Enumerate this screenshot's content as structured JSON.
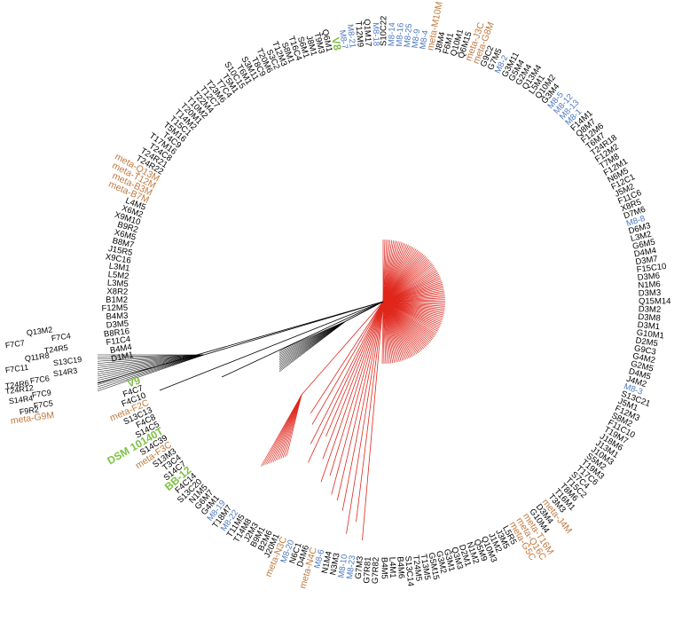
{
  "ring_labels": [
    "D1M1",
    "B4M4",
    "F11C4",
    "B8R16",
    "D3M5",
    "B4M3",
    "F12M5",
    "B1M2",
    "X8R2",
    "L3M5",
    "L5M2",
    "L3M1",
    "X9C16",
    "J15R5",
    "B8M7",
    "X6M5",
    "B9R2",
    "X9M10",
    "X6M2",
    "L4M5",
    {
      "text": "meta-B7M",
      "color": "#c17a3f"
    },
    {
      "text": "meta-B3M",
      "color": "#c17a3f"
    },
    {
      "text": "meta-T12M",
      "color": "#c17a3f"
    },
    {
      "text": "meta-Q13M",
      "color": "#c17a3f"
    },
    "T24R22",
    "T24R21",
    "T24C8",
    "T17M16",
    "T4C9",
    "T5M16",
    "T15C1",
    "T14M2",
    "T20M1",
    "T10M2",
    "T22M4",
    "T12C7",
    "T23M6",
    "T7C4",
    "T5M1",
    "S10C15",
    "T6M1",
    "S3M11",
    "T8C9",
    "T20M6",
    "S3C2",
    "T12M3",
    "S8M1",
    "T16C4",
    "S6M1",
    "J8M1",
    "T9M3",
    "Q6M1",
    {
      "text": "V8",
      "color": "#7cc142"
    },
    {
      "text": "M8-7",
      "color": "#4a78c0"
    },
    {
      "text": "M8-21",
      "color": "#4a78c0"
    },
    "T12M9",
    "Q1M17",
    {
      "text": "M8-18",
      "color": "#4a78c0"
    },
    "S10C22",
    {
      "text": "M8-14",
      "color": "#4a78c0"
    },
    {
      "text": "M8-16",
      "color": "#4a78c0"
    },
    {
      "text": "M8-25",
      "color": "#4a78c0"
    },
    {
      "text": "M8-9",
      "color": "#4a78c0"
    },
    {
      "text": "M8-4",
      "color": "#4a78c0"
    },
    {
      "text": "meta-M10M",
      "color": "#c17a3f"
    },
    "J8M4",
    "F6M1",
    "Q10M1",
    "Q6M15",
    {
      "text": "meta-J3C",
      "color": "#c17a3f"
    },
    {
      "text": "meta-G8M",
      "color": "#c17a3f"
    },
    "G9C2",
    "G7M5",
    {
      "text": "M8-2",
      "color": "#4a78c0"
    },
    "G3M11",
    "G5M4",
    "G2M4",
    "Q13M4",
    "L5M1",
    "Q10M2",
    "G3M4",
    {
      "text": "M8-5",
      "color": "#4a78c0"
    },
    {
      "text": "M8-12",
      "color": "#4a78c0"
    },
    {
      "text": "M8-13",
      "color": "#4a78c0"
    },
    {
      "text": "M8-1",
      "color": "#4a78c0"
    },
    "F14M1",
    "Q8M7",
    "F12M6",
    "T6M7",
    "T24R18",
    "F12M2",
    "T7M8",
    "F12M1",
    "N6M5",
    "F12C1",
    "J5M2",
    "F11C6",
    "X8R5",
    "D7M6",
    {
      "text": "M8-8",
      "color": "#4a78c0"
    },
    "D6M3",
    "L3M2",
    "G6M5",
    "D4M4",
    "D3M7",
    "F15C10",
    "D3M6",
    "N1M6",
    "D3M3",
    "Q15M14",
    "D3M2",
    "D3M8",
    "D3M1",
    "G10M1",
    "D2M5",
    "G9C3",
    "G4M2",
    "G2M5",
    "D4M5",
    "J4M2",
    {
      "text": "M8-3",
      "color": "#4a78c0"
    },
    "S13C21",
    "J5M1",
    "F12M3",
    "S8M2",
    "F11C10",
    "T19M7",
    "J18M6",
    "J13M1",
    "J10M3",
    "S5M2",
    "T19M3",
    "T17C6",
    "S7C4",
    "T15C2",
    "T8M6",
    "T16M1",
    "T3M3",
    {
      "text": "meta-J4M",
      "color": "#c17a3f"
    },
    "D3M4",
    "G10M4",
    {
      "text": "meta-T16M",
      "color": "#c17a3f"
    },
    {
      "text": "meta-Q16C",
      "color": "#c17a3f"
    },
    {
      "text": "meta-G5C",
      "color": "#c17a3f"
    },
    "L5R5",
    "J3M5",
    "J1M2",
    "Q10M3",
    "Q5M9",
    "N1M2",
    "D2M1",
    "Q3M3",
    "G3M1",
    "G3M2",
    "G5M15",
    "T13M5",
    "T24M5",
    "S13C14",
    "B4M6",
    "L4M1",
    "B4M5",
    "G7R82",
    "G7R81",
    "G7M3",
    {
      "text": "M8-23",
      "color": "#4a78c0"
    },
    {
      "text": "M8-10",
      "color": "#4a78c0"
    },
    "N3M3",
    "N1M4",
    {
      "text": "M8-6",
      "color": "#4a78c0"
    },
    {
      "text": "meta-N4C",
      "color": "#c17a3f"
    },
    "D4M6",
    "N6C1",
    {
      "text": "M8-20",
      "color": "#4a78c0"
    },
    {
      "text": "meta-N3C",
      "color": "#c17a3f"
    },
    "J20M1",
    "B2M6",
    "B9M1",
    "J2M3",
    "T14M8",
    "T11M5",
    {
      "text": "M8-22",
      "color": "#4a78c0"
    },
    "T18M7",
    {
      "text": "M8-19",
      "color": "#4a78c0"
    },
    "G4M1",
    "G6M7",
    "N1M5",
    "S13C20",
    "F4C14",
    {
      "text": "BB-12",
      "color": "#7cc142"
    },
    "S14C7",
    "T3C4",
    "S13M3",
    {
      "text": "meta-F3C",
      "color": "#c17a3f"
    },
    "S14C39",
    {
      "text": "DSM 10140T",
      "color": "#7cc142"
    },
    "S14C5",
    "F4C8",
    "S13C13",
    {
      "text": "meta-F2C",
      "color": "#c17a3f"
    },
    "F4C10",
    "F4C7",
    {
      "text": "V9",
      "color": "#7cc142"
    }
  ],
  "left_labels": [
    "Q13M2",
    "F7C4",
    "F7C7",
    "T24R5",
    "Q11R8",
    "S13C19",
    "F7C11",
    "S14R3",
    "F7C6",
    "T24R6",
    "T24R12",
    "F7C9",
    "S14R4",
    "F7C5",
    "F9R2",
    {
      "text": "meta-G9M",
      "color": "#c17a3f"
    }
  ]
}
